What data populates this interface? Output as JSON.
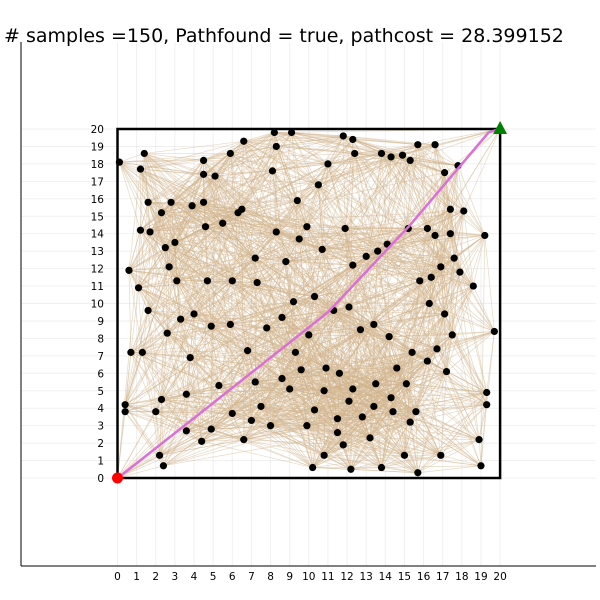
{
  "chart_data": {
    "type": "scatter",
    "title": "# samples =150,  Pathfound = true,  pathcost = 28.399152",
    "xlabel": "",
    "ylabel": "",
    "xlim": [
      -5.5,
      25.5
    ],
    "ylim": [
      -5,
      25.5
    ],
    "grid": true,
    "legend": "none",
    "xticks": [
      0,
      1,
      2,
      3,
      4,
      5,
      6,
      7,
      8,
      9,
      10,
      11,
      12,
      13,
      14,
      15,
      16,
      17,
      18,
      19,
      20
    ],
    "yticks": [
      0,
      1,
      2,
      3,
      4,
      5,
      6,
      7,
      8,
      9,
      10,
      11,
      12,
      13,
      14,
      15,
      16,
      17,
      18,
      19,
      20
    ],
    "boundary": {
      "x": [
        0,
        20
      ],
      "y": [
        0,
        20
      ],
      "color": "#000000"
    },
    "start": {
      "x": 0,
      "y": 0,
      "color": "#ff0000",
      "shape": "circle"
    },
    "goal": {
      "x": 20,
      "y": 20,
      "color": "#008000",
      "shape": "triangle"
    },
    "path": {
      "color": "#da70d6",
      "points": [
        [
          0,
          0
        ],
        [
          0.6,
          0.5
        ],
        [
          5,
          4.3
        ],
        [
          11,
          9.5
        ],
        [
          15.3,
          14.5
        ],
        [
          19.4,
          19.8
        ],
        [
          20,
          20
        ]
      ]
    },
    "samples": {
      "color": "#000000",
      "count": 150,
      "points": [
        [
          0.1,
          18.1
        ],
        [
          1.4,
          18.6
        ],
        [
          1.2,
          17.7
        ],
        [
          1.6,
          15.8
        ],
        [
          1.2,
          14.2
        ],
        [
          1.7,
          14.1
        ],
        [
          2.3,
          15.2
        ],
        [
          2.5,
          13.2
        ],
        [
          3.0,
          13.5
        ],
        [
          2.8,
          15.8
        ],
        [
          0.6,
          11.9
        ],
        [
          1.1,
          10.9
        ],
        [
          1.6,
          9.6
        ],
        [
          0.7,
          7.2
        ],
        [
          1.3,
          7.2
        ],
        [
          2.6,
          8.3
        ],
        [
          3.3,
          9.1
        ],
        [
          3.8,
          6.9
        ],
        [
          0.4,
          4.2
        ],
        [
          0.4,
          3.8
        ],
        [
          2.0,
          3.8
        ],
        [
          2.3,
          4.5
        ],
        [
          2.2,
          1.3
        ],
        [
          2.4,
          0.7
        ],
        [
          3.6,
          2.7
        ],
        [
          4.4,
          2.1
        ],
        [
          4.9,
          2.8
        ],
        [
          5.3,
          5.3
        ],
        [
          4.9,
          8.7
        ],
        [
          4.7,
          11.3
        ],
        [
          4.5,
          17.4
        ],
        [
          4.5,
          18.2
        ],
        [
          5.1,
          17.3
        ],
        [
          5.9,
          18.6
        ],
        [
          6.6,
          19.3
        ],
        [
          8.2,
          19.8
        ],
        [
          9.1,
          19.8
        ],
        [
          8.3,
          19.0
        ],
        [
          8.1,
          17.6
        ],
        [
          9.4,
          15.9
        ],
        [
          6.3,
          15.2
        ],
        [
          6.5,
          15.4
        ],
        [
          5.5,
          14.6
        ],
        [
          4.6,
          14.4
        ],
        [
          3.9,
          15.6
        ],
        [
          4.5,
          15.8
        ],
        [
          6.0,
          11.3
        ],
        [
          7.3,
          11.2
        ],
        [
          7.2,
          12.6
        ],
        [
          5.9,
          8.8
        ],
        [
          7.8,
          8.6
        ],
        [
          6.8,
          7.3
        ],
        [
          7.2,
          5.5
        ],
        [
          7.0,
          3.3
        ],
        [
          6.6,
          2.2
        ],
        [
          7.5,
          4.1
        ],
        [
          9.0,
          5.1
        ],
        [
          10.3,
          3.9
        ],
        [
          10.2,
          0.6
        ],
        [
          10.8,
          1.3
        ],
        [
          11.8,
          1.9
        ],
        [
          12.2,
          0.5
        ],
        [
          11.5,
          2.6
        ],
        [
          12.8,
          3.5
        ],
        [
          13.2,
          2.3
        ],
        [
          13.8,
          0.6
        ],
        [
          14.4,
          3.8
        ],
        [
          15.0,
          1.3
        ],
        [
          15.7,
          0.3
        ],
        [
          15.3,
          3.2
        ],
        [
          15.6,
          3.8
        ],
        [
          16.9,
          1.3
        ],
        [
          19.0,
          0.7
        ],
        [
          18.9,
          2.2
        ],
        [
          19.3,
          4.9
        ],
        [
          19.3,
          4.2
        ],
        [
          19.7,
          8.4
        ],
        [
          18.6,
          11.0
        ],
        [
          19.2,
          13.9
        ],
        [
          17.9,
          11.8
        ],
        [
          18.1,
          15.3
        ],
        [
          17.4,
          15.4
        ],
        [
          17.8,
          17.9
        ],
        [
          17.1,
          17.5
        ],
        [
          16.6,
          19.1
        ],
        [
          15.7,
          19.1
        ],
        [
          15.3,
          18.2
        ],
        [
          14.9,
          18.5
        ],
        [
          14.3,
          18.4
        ],
        [
          13.8,
          18.6
        ],
        [
          11.8,
          19.6
        ],
        [
          12.3,
          19.4
        ],
        [
          12.4,
          18.6
        ],
        [
          11.0,
          18.0
        ],
        [
          10.5,
          16.8
        ],
        [
          9.9,
          14.4
        ],
        [
          10.7,
          13.1
        ],
        [
          11.9,
          14.3
        ],
        [
          12.3,
          12.2
        ],
        [
          13.0,
          12.7
        ],
        [
          13.6,
          13.0
        ],
        [
          14.1,
          13.4
        ],
        [
          15.2,
          14.3
        ],
        [
          16.2,
          14.3
        ],
        [
          16.6,
          13.9
        ],
        [
          17.4,
          14.0
        ],
        [
          16.9,
          12.1
        ],
        [
          17.6,
          12.6
        ],
        [
          16.4,
          11.5
        ],
        [
          15.8,
          11.3
        ],
        [
          16.3,
          10.0
        ],
        [
          17.1,
          9.4
        ],
        [
          17.5,
          8.2
        ],
        [
          16.7,
          7.4
        ],
        [
          17.2,
          6.1
        ],
        [
          16.2,
          6.7
        ],
        [
          15.4,
          7.2
        ],
        [
          14.2,
          8.1
        ],
        [
          13.4,
          8.8
        ],
        [
          12.7,
          8.5
        ],
        [
          12.1,
          9.8
        ],
        [
          11.3,
          9.6
        ],
        [
          10.3,
          10.4
        ],
        [
          9.2,
          10.1
        ],
        [
          8.6,
          9.2
        ],
        [
          9.3,
          7.2
        ],
        [
          10.0,
          8.2
        ],
        [
          10.9,
          6.3
        ],
        [
          11.6,
          6.0
        ],
        [
          12.3,
          5.1
        ],
        [
          13.5,
          5.4
        ],
        [
          14.6,
          6.3
        ],
        [
          15.1,
          5.4
        ],
        [
          14.3,
          4.6
        ],
        [
          13.4,
          4.1
        ],
        [
          12.1,
          4.4
        ],
        [
          10.8,
          5.0
        ],
        [
          9.9,
          3.0
        ],
        [
          11.5,
          3.4
        ],
        [
          8.0,
          3.0
        ],
        [
          8.6,
          5.7
        ],
        [
          9.6,
          6.2
        ],
        [
          6.0,
          3.7
        ],
        [
          3.6,
          4.8
        ],
        [
          4.0,
          9.4
        ],
        [
          3.1,
          11.3
        ],
        [
          2.7,
          12.1
        ],
        [
          8.8,
          12.4
        ],
        [
          9.5,
          13.7
        ],
        [
          8.3,
          14.1
        ]
      ]
    },
    "edges": {
      "color": "#d2b48c",
      "opacity": 0.5,
      "connect_radius": 6
    }
  }
}
